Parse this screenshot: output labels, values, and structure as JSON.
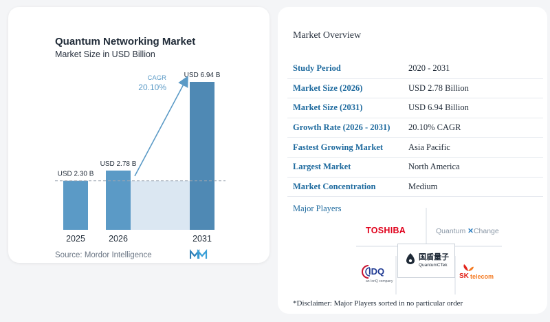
{
  "chart": {
    "title": "Quantum Networking Market",
    "subtitle": "Market Size in USD Billion",
    "cagr_label": "CAGR",
    "cagr_value": "20.10%",
    "source": "Source: Mordor Intelligence"
  },
  "chart_data": {
    "type": "bar",
    "categories": [
      "2025",
      "2026",
      "2031"
    ],
    "values": [
      2.3,
      2.78,
      6.94
    ],
    "value_labels": [
      "USD 2.30 B",
      "USD 2.78 B",
      "USD 6.94 B"
    ],
    "title": "Quantum Networking Market",
    "subtitle": "Market Size in USD Billion",
    "xlabel": "",
    "ylabel": "",
    "annotation": "CAGR 20.10%",
    "grid": false,
    "colors": {
      "bar": "#5b9ac6",
      "bar_dark": "#4f89b4",
      "shade": "#dbe7f2",
      "arrow": "#5b9ac6",
      "cagr_text": "#5b9ac6"
    }
  },
  "overview": {
    "title": "Market Overview",
    "rows": [
      {
        "label": "Study Period",
        "value": "2020 - 2031"
      },
      {
        "label": "Market Size (2026)",
        "value": "USD 2.78 Billion"
      },
      {
        "label": "Market Size (2031)",
        "value": "USD 6.94 Billion"
      },
      {
        "label": "Growth Rate (2026 - 2031)",
        "value": "20.10% CAGR"
      },
      {
        "label": "Fastest Growing Market",
        "value": "Asia Pacific"
      },
      {
        "label": "Largest Market",
        "value": "North America"
      },
      {
        "label": "Market Concentration",
        "value": "Medium"
      }
    ]
  },
  "players": {
    "title": "Major Players",
    "logos": [
      {
        "name": "TOSHIBA",
        "color": "#e0001b"
      },
      {
        "name": "Quantum",
        "suffix": "Change",
        "color": "#8a97a6"
      },
      {
        "name": "IDQ",
        "tag": "an IonQ company",
        "color": "#1f3a93"
      },
      {
        "name": "国盾量子",
        "sub": "QuantumCTek",
        "color": "#1f2a37"
      },
      {
        "name": "SK",
        "suffix": "telecom",
        "color": "#e2231a"
      }
    ],
    "disclaimer": "*Disclaimer: Major Players sorted in no particular order"
  },
  "colors": {
    "accent": "#1e6a9e",
    "background": "#f4f5f7"
  }
}
